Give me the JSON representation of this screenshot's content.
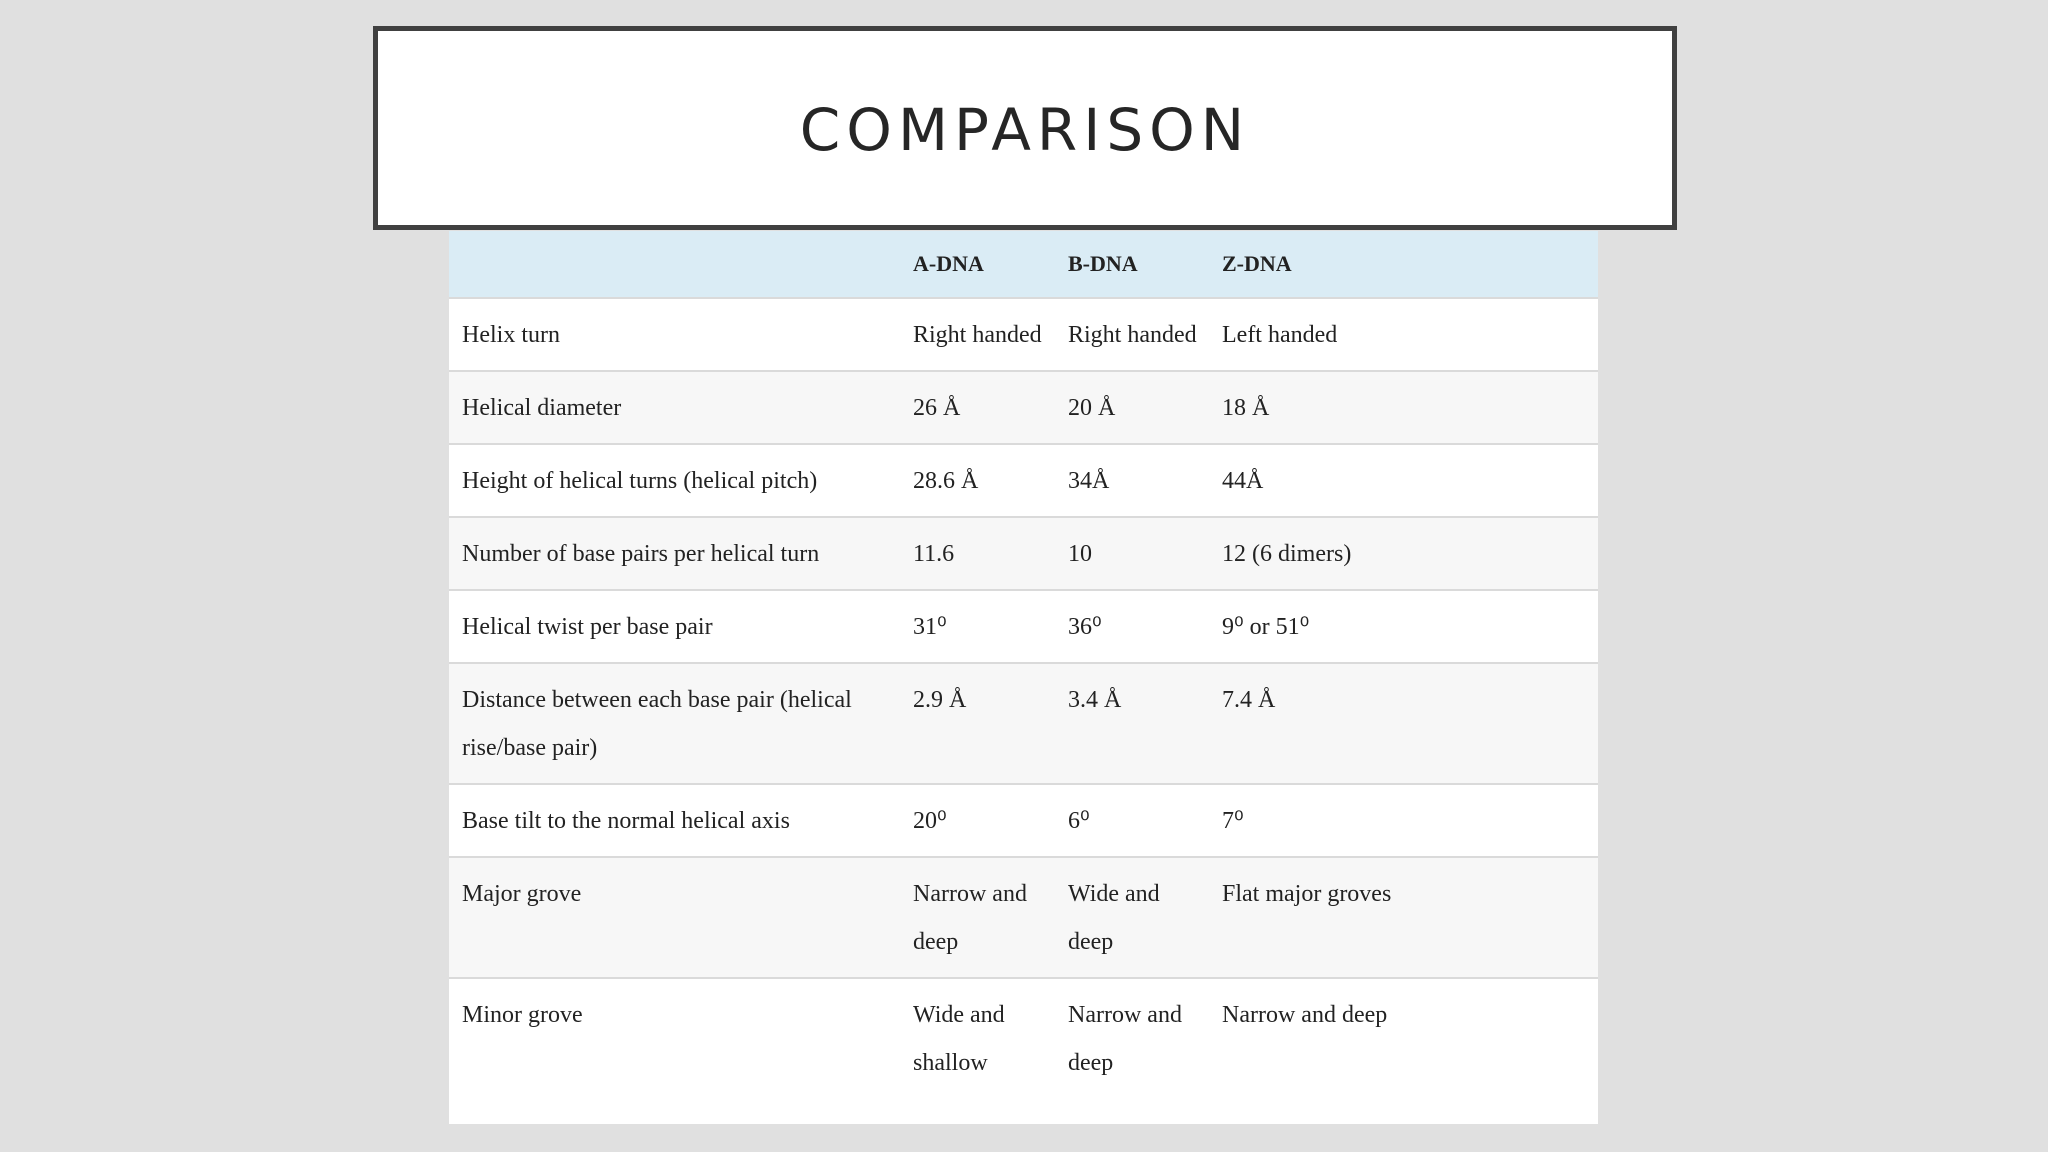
{
  "title": "COMPARISON",
  "table": {
    "headers": [
      "",
      "A-DNA",
      "B-DNA",
      "Z-DNA"
    ],
    "rows": [
      [
        "Helix turn",
        "Right handed",
        "Right handed",
        "Left handed"
      ],
      [
        "Helical diameter",
        "26 Å",
        "20 Å",
        "18 Å"
      ],
      [
        "Height of helical turns (helical pitch)",
        "28.6 Å",
        "34Å",
        "44Å"
      ],
      [
        "Number of base pairs per helical turn",
        "11.6",
        "10",
        "12 (6 dimers)"
      ],
      [
        "Helical twist per base pair",
        "31⁰",
        "36⁰",
        "9⁰ or 51⁰"
      ],
      [
        "Distance between each base pair (helical rise/base pair)",
        "2.9 Å",
        "3.4 Å",
        "7.4 Å"
      ],
      [
        "Base tilt to the normal helical axis",
        "20⁰",
        "6⁰",
        "7⁰"
      ],
      [
        "Major grove",
        "Narrow and deep",
        "Wide and deep",
        "Flat major groves"
      ],
      [
        "Minor grove",
        "Wide and shallow",
        "Narrow and deep",
        "Narrow and deep"
      ]
    ]
  }
}
